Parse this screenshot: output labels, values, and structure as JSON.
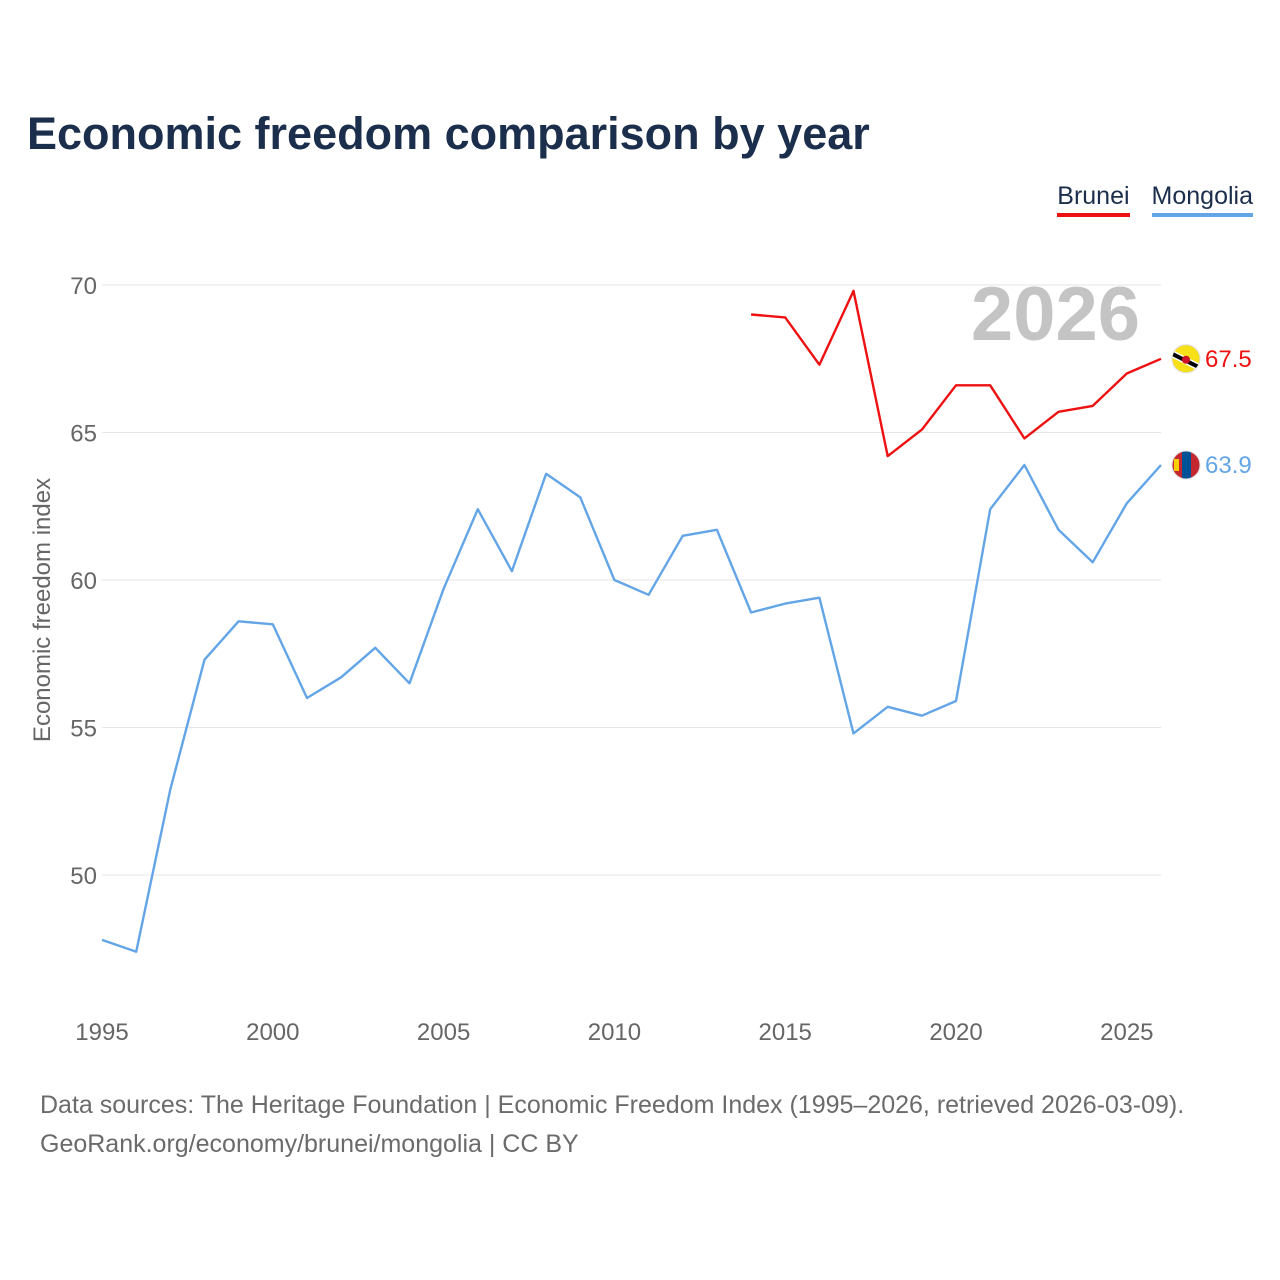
{
  "title": "Economic freedom comparison by year",
  "colors": {
    "brunei": "#ee1111",
    "mongolia": "#63a5e6",
    "grid": "#e6e6e6",
    "tick": "#666666",
    "watermark": "#c4c4c4",
    "title": "#1b2e4b"
  },
  "legend": [
    {
      "label": "Brunei",
      "color": "#ee1111"
    },
    {
      "label": "Mongolia",
      "color": "#63a5e6"
    }
  ],
  "footer": {
    "line1": "Data sources: The Heritage Foundation | Economic Freedom Index (1995–2026, retrieved 2026-03-09).",
    "line2": "GeoRank.org/economy/brunei/mongolia | CC BY"
  },
  "chart_data": {
    "type": "line",
    "title": "Economic freedom comparison by year",
    "ylabel": "Economic freedom index",
    "xlabel": "",
    "watermark_year": "2026",
    "xlim": [
      1995,
      2026
    ],
    "ylim": [
      46,
      71
    ],
    "yticks": [
      50,
      55,
      60,
      65,
      70
    ],
    "xticks": [
      1995,
      2000,
      2005,
      2010,
      2015,
      2020,
      2025
    ],
    "grid": true,
    "legend_position": "top-right",
    "series": [
      {
        "name": "Brunei",
        "color": "#ee1111",
        "end_label": "67.5",
        "flag": "brunei",
        "x": [
          2014,
          2015,
          2016,
          2017,
          2018,
          2019,
          2020,
          2021,
          2022,
          2023,
          2024,
          2025,
          2026
        ],
        "values": [
          69.0,
          68.9,
          67.3,
          69.8,
          64.2,
          65.1,
          66.6,
          66.6,
          64.8,
          65.7,
          65.9,
          67.0,
          67.5
        ]
      },
      {
        "name": "Mongolia",
        "color": "#63a5e6",
        "end_label": "63.9",
        "flag": "mongolia",
        "x": [
          1995,
          1996,
          1997,
          1998,
          1999,
          2000,
          2001,
          2002,
          2003,
          2004,
          2005,
          2006,
          2007,
          2008,
          2009,
          2010,
          2011,
          2012,
          2013,
          2014,
          2015,
          2016,
          2017,
          2018,
          2019,
          2020,
          2021,
          2022,
          2023,
          2024,
          2025,
          2026
        ],
        "values": [
          47.8,
          47.4,
          52.9,
          57.3,
          58.6,
          58.5,
          56.0,
          56.7,
          57.7,
          56.5,
          59.7,
          62.4,
          60.3,
          63.6,
          62.8,
          60.0,
          59.5,
          61.5,
          61.7,
          58.9,
          59.2,
          59.4,
          54.8,
          55.7,
          55.4,
          55.9,
          62.4,
          63.9,
          61.7,
          60.6,
          62.6,
          63.9
        ]
      }
    ]
  }
}
